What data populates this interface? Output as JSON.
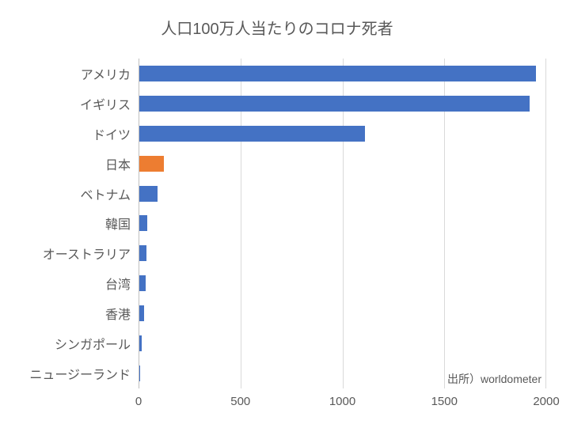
{
  "chart": {
    "type": "bar",
    "orientation": "horizontal",
    "title": "人口100万人当たりのコロナ死者",
    "title_fontsize": 20,
    "title_color": "#595959",
    "categories": [
      "アメリカ",
      "イギリス",
      "ドイツ",
      "日本",
      "ベトナム",
      "韓国",
      "オーストラリア",
      "台湾",
      "香港",
      "シンガポール",
      "ニュージーランド"
    ],
    "values": [
      1950,
      1920,
      1110,
      120,
      90,
      40,
      35,
      30,
      25,
      10,
      5
    ],
    "bar_colors": [
      "#4472c4",
      "#4472c4",
      "#4472c4",
      "#ed7d31",
      "#4472c4",
      "#4472c4",
      "#4472c4",
      "#4472c4",
      "#4472c4",
      "#4472c4",
      "#4472c4"
    ],
    "xlim": [
      0,
      2000
    ],
    "xtick_step": 500,
    "xticks": [
      0,
      500,
      1000,
      1500,
      2000
    ],
    "grid_color": "#d9d9d9",
    "axis_color": "#bfbfbf",
    "background_color": "#ffffff",
    "label_fontsize": 16,
    "tick_fontsize": 15,
    "text_color": "#595959",
    "bar_height_ratio": 0.55,
    "source_text": "出所）worldometer",
    "source_fontsize": 14
  }
}
